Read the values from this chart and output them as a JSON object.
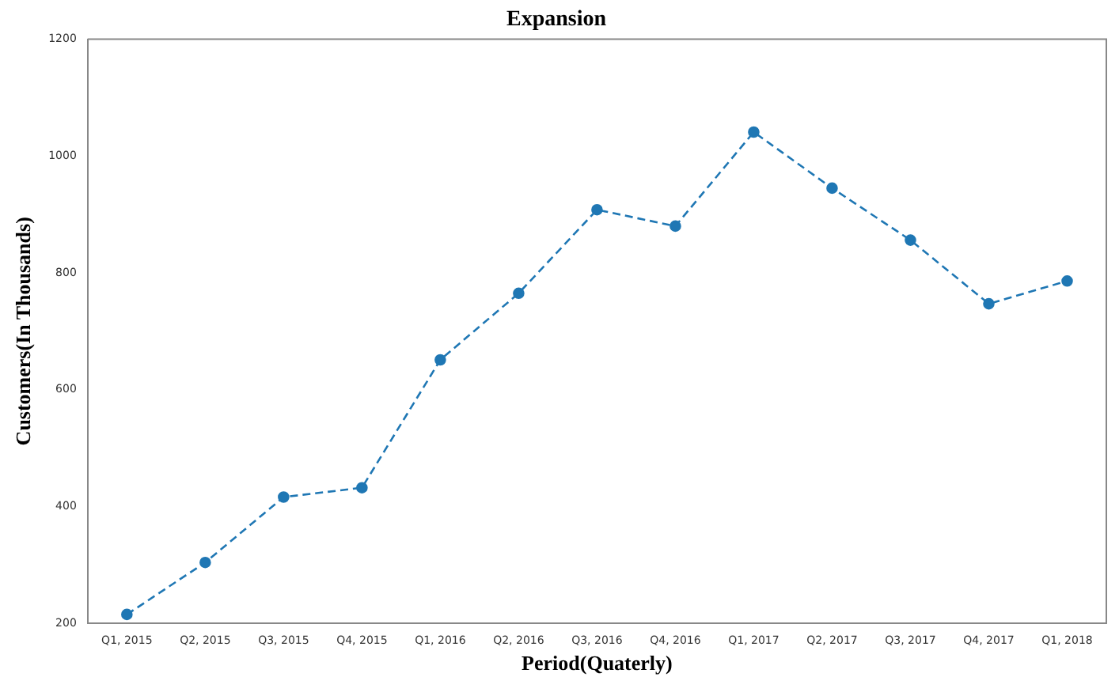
{
  "chart_data": {
    "type": "line",
    "title": "Expansion",
    "xlabel": "Period(Quaterly)",
    "ylabel": "Customers(In Thousands)",
    "categories": [
      "Q1, 2015",
      "Q2, 2015",
      "Q3, 2015",
      "Q4, 2015",
      "Q1, 2016",
      "Q2, 2016",
      "Q3, 2016",
      "Q4, 2016",
      "Q1, 2017",
      "Q2, 2017",
      "Q3, 2017",
      "Q4, 2017",
      "Q1, 2018"
    ],
    "series": [
      {
        "color": "#1f77b4",
        "values": [
          215,
          304,
          416,
          432,
          651,
          765,
          908,
          880,
          1041,
          945,
          856,
          747,
          786
        ]
      }
    ],
    "ylim": [
      200,
      1200
    ],
    "yticks": [
      200,
      400,
      600,
      800,
      1000,
      1200
    ],
    "grid": false,
    "legend": false,
    "marker": "circle",
    "line_style": "dashed"
  }
}
